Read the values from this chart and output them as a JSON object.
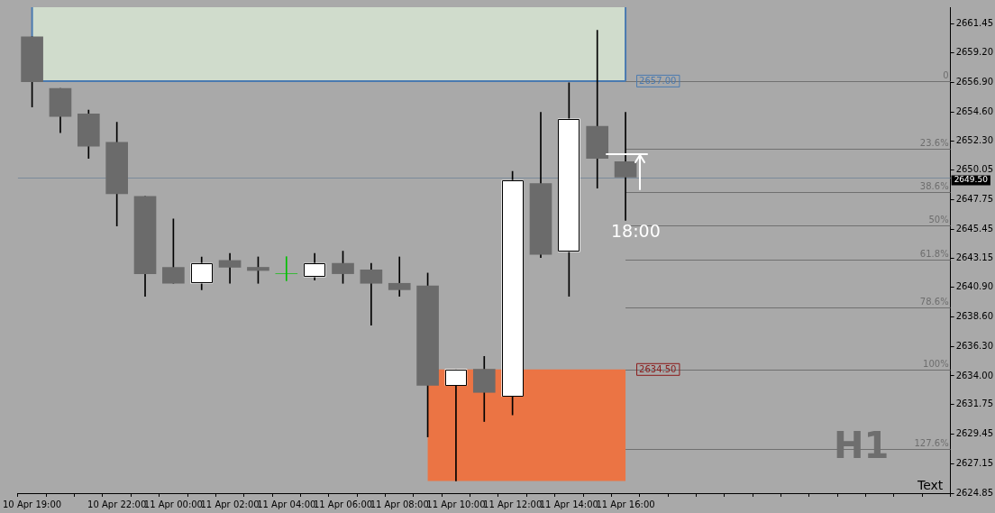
{
  "chart_data": {
    "type": "candlestick",
    "categories": [
      "10 Apr 19:00",
      null,
      null,
      "10 Apr 22:00",
      null,
      "11 Apr 00:00",
      null,
      "11 Apr 02:00",
      null,
      "11 Apr 04:00",
      null,
      "11 Apr 06:00",
      null,
      "11 Apr 08:00",
      null,
      "11 Apr 10:00",
      null,
      "11 Apr 12:00",
      null,
      "11 Apr 14:00",
      null,
      "11 Apr 16:00",
      null,
      null,
      null,
      null,
      null,
      null,
      null,
      null,
      null,
      null,
      null
    ],
    "ohlc": [
      [
        2660.45,
        2660.45,
        2654.98,
        2656.94
      ],
      [
        2656.43,
        2656.43,
        2652.97,
        2654.23
      ],
      [
        2654.43,
        2654.73,
        2650.96,
        2651.92
      ],
      [
        2652.22,
        2653.78,
        2645.69,
        2648.2
      ],
      [
        2648.0,
        2648.0,
        2640.21,
        2641.97
      ],
      [
        2642.47,
        2646.24,
        2641.22,
        2641.22
      ],
      [
        2641.22,
        2643.28,
        2640.72,
        2642.78
      ],
      [
        2643.0,
        2643.55,
        2641.22,
        2642.47
      ],
      [
        2642.47,
        2643.28,
        2641.22,
        2642.22
      ],
      [
        2641.97,
        2643.3,
        2641.42,
        2641.97
      ],
      [
        2641.72,
        2643.55,
        2641.47,
        2642.78
      ],
      [
        2642.78,
        2643.73,
        2641.22,
        2641.97
      ],
      [
        2642.27,
        2642.78,
        2637.96,
        2641.22
      ],
      [
        2641.22,
        2643.28,
        2640.21,
        2640.72
      ],
      [
        2641.02,
        2642.02,
        2629.24,
        2633.26
      ],
      [
        2633.26,
        2634.52,
        2625.8,
        2634.52
      ],
      [
        2634.52,
        2635.52,
        2630.44,
        2632.71
      ],
      [
        2632.4,
        2649.96,
        2630.95,
        2649.25
      ],
      [
        2649.0,
        2654.56,
        2643.23,
        2643.48
      ],
      [
        2643.68,
        2656.86,
        2640.21,
        2654.05
      ],
      [
        2653.47,
        2660.96,
        2648.65,
        2650.96
      ],
      [
        2650.71,
        2654.56,
        2646.13,
        2649.5
      ],
      null,
      null,
      null,
      null,
      null,
      null,
      null,
      null,
      null,
      null,
      null
    ],
    "colors": [
      "#6b6b6b",
      "#6b6b6b",
      "#6b6b6b",
      "#6b6b6b",
      "#6b6b6b",
      "#6b6b6b",
      "#ffffff",
      "#6b6b6b",
      "#6b6b6b",
      "#00c000",
      "#ffffff",
      "#6b6b6b",
      "#6b6b6b",
      "#6b6b6b",
      "#6b6b6b",
      "#ffffff",
      "#6b6b6b",
      "#ffffff",
      "#6b6b6b",
      "#ffffff",
      "#6b6b6b",
      "#6b6b6b",
      null,
      null,
      null,
      null,
      null,
      null,
      null,
      null,
      null,
      null,
      null
    ],
    "ylim": [
      2624.85,
      2662.76
    ],
    "yticks": [
      {
        "value": 2661.45,
        "label": "2661.45"
      },
      {
        "value": 2659.2,
        "label": "2659.20"
      },
      {
        "value": 2656.9,
        "label": "2656.90"
      },
      {
        "value": 2654.6,
        "label": "2654.60"
      },
      {
        "value": 2652.3,
        "label": "2652.30"
      },
      {
        "value": 2650.05,
        "label": "2650.05"
      },
      {
        "value": 2647.75,
        "label": "2647.75"
      },
      {
        "value": 2645.45,
        "label": "2645.45"
      },
      {
        "value": 2643.15,
        "label": "2643.15"
      },
      {
        "value": 2640.9,
        "label": "2640.90"
      },
      {
        "value": 2638.6,
        "label": "2638.60"
      },
      {
        "value": 2636.3,
        "label": "2636.30"
      },
      {
        "value": 2634.0,
        "label": "2634.00"
      },
      {
        "value": 2631.75,
        "label": "2631.75"
      },
      {
        "value": 2629.45,
        "label": "2629.45"
      },
      {
        "value": 2627.15,
        "label": "2627.15"
      },
      {
        "value": 2624.85,
        "label": "2624.85"
      }
    ],
    "grid": false,
    "legend": false,
    "bands": [
      {
        "axis": "y",
        "from": 2657.0,
        "to": 2662.76,
        "label": "2657.00",
        "color": "#d0dccc"
      },
      {
        "axis": "y",
        "from": 2625.8,
        "to": 2634.5,
        "label": "2634.50",
        "color": "#eb7444"
      }
    ],
    "ref_lines": [
      {
        "axis": "y",
        "value": 2649.5,
        "label": "2649.50",
        "color": "#7a8a9a"
      },
      {
        "axis": "y",
        "value": 2657.0,
        "color": "#707070"
      },
      {
        "axis": "y",
        "value": 2651.69,
        "color": "#707070"
      },
      {
        "axis": "y",
        "value": 2648.32,
        "color": "#707070"
      },
      {
        "axis": "y",
        "value": 2645.75,
        "color": "#707070"
      },
      {
        "axis": "y",
        "value": 2643.09,
        "color": "#707070"
      },
      {
        "axis": "y",
        "value": 2639.32,
        "color": "#707070"
      },
      {
        "axis": "y",
        "value": 2634.5,
        "color": "#707070"
      },
      {
        "axis": "y",
        "value": 2628.29,
        "color": "#707070"
      }
    ],
    "annotations": [
      "18:00",
      "H1",
      "Text",
      {
        "text": "0",
        "y": 2657.0
      },
      {
        "text": "23.6%",
        "y": 2651.69
      },
      {
        "text": "38.6%",
        "y": 2648.32
      },
      {
        "text": "50%",
        "y": 2645.75
      },
      {
        "text": "61.8%",
        "y": 2643.09
      },
      {
        "text": "78.6%",
        "y": 2639.32
      },
      {
        "text": "100%",
        "y": 2634.5
      },
      {
        "text": "127.6%",
        "y": 2628.29
      }
    ]
  }
}
